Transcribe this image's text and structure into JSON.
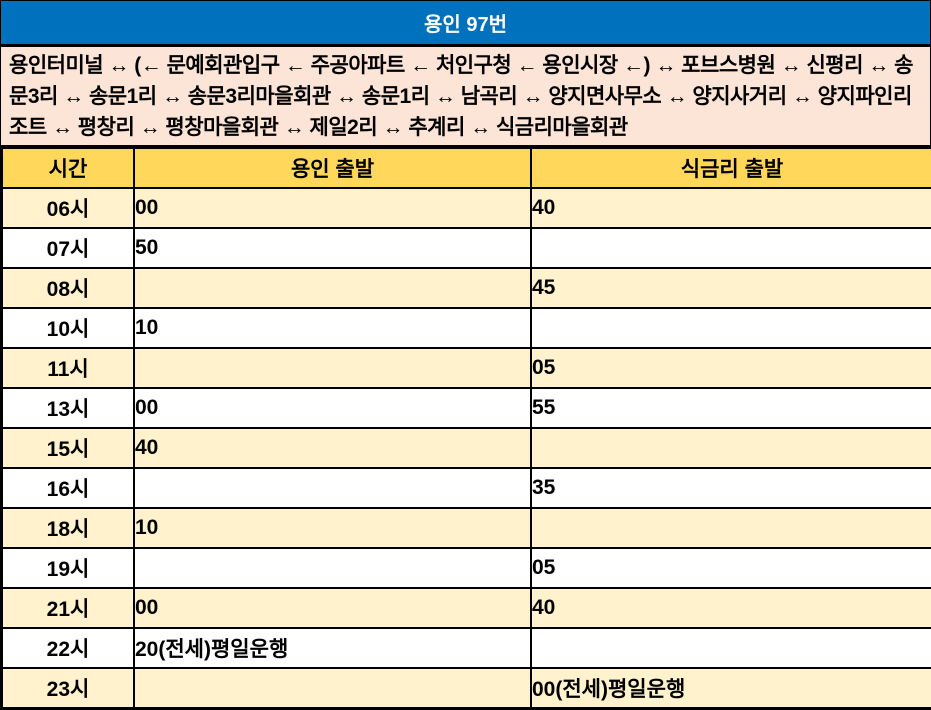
{
  "title": "용인 97번",
  "route_description": "용인터미널 ↔ (← 문예회관입구 ← 주공아파트 ← 처인구청 ← 용인시장 ←) ↔ 포브스병원 ↔ 신평리 ↔ 송문3리 ↔ 송문1리 ↔ 송문3리마을회관 ↔ 송문1리 ↔ 남곡리 ↔ 양지면사무소 ↔ 양지사거리 ↔ 양지파인리조트 ↔ 평창리 ↔ 평창마을회관 ↔ 제일2리 ↔ 추계리 ↔ 식금리마을회관",
  "colors": {
    "title_bg": "#0071bc",
    "title_text": "#ffffff",
    "route_bg": "#fce4d6",
    "header_bg": "#ffd75a",
    "row_alt_bg": "#fff2cc",
    "row_bg": "#ffffff",
    "border": "#000000",
    "text": "#000000"
  },
  "table": {
    "columns": [
      "시간",
      "용인 출발",
      "식금리 출발"
    ],
    "rows": [
      {
        "time": "06시",
        "yongin": "00",
        "sikgeumri": "40"
      },
      {
        "time": "07시",
        "yongin": "50",
        "sikgeumri": ""
      },
      {
        "time": "08시",
        "yongin": "",
        "sikgeumri": "45"
      },
      {
        "time": "10시",
        "yongin": "10",
        "sikgeumri": ""
      },
      {
        "time": "11시",
        "yongin": "",
        "sikgeumri": "05"
      },
      {
        "time": "13시",
        "yongin": "00",
        "sikgeumri": "55"
      },
      {
        "time": "15시",
        "yongin": "40",
        "sikgeumri": ""
      },
      {
        "time": "16시",
        "yongin": "",
        "sikgeumri": "35"
      },
      {
        "time": "18시",
        "yongin": "10",
        "sikgeumri": ""
      },
      {
        "time": "19시",
        "yongin": "",
        "sikgeumri": "05"
      },
      {
        "time": "21시",
        "yongin": "00",
        "sikgeumri": "40"
      },
      {
        "time": "22시",
        "yongin": "20(전세)평일운행",
        "sikgeumri": ""
      },
      {
        "time": "23시",
        "yongin": "",
        "sikgeumri": "00(전세)평일운행"
      }
    ]
  }
}
